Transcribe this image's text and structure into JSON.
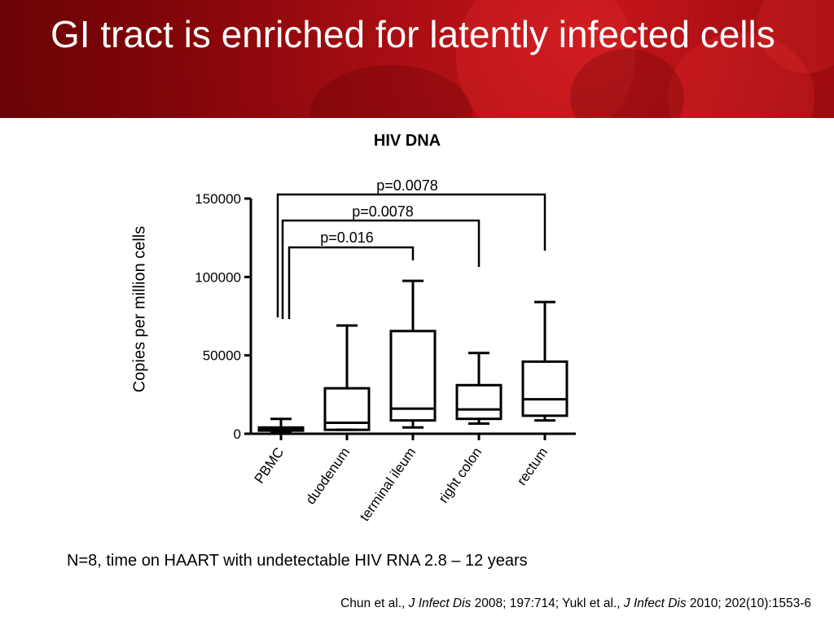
{
  "slide": {
    "title": "GI tract is enriched for latently infected cells",
    "footnote": "N=8, time on HAART with undetectable HIV RNA 2.8 – 12 years",
    "citation": {
      "part1": "Chun et al., ",
      "journal1": "J Infect Dis",
      "part2": " 2008; 197:714; Yukl et al., ",
      "journal2": "J Infect Dis",
      "part3": " 2010; 202(10):1553-6"
    }
  },
  "chart_data": {
    "type": "box",
    "title": "HIV DNA",
    "ylabel": "Copies per million cells",
    "ylim": [
      0,
      150000
    ],
    "yticks": [
      0,
      50000,
      100000,
      150000
    ],
    "ytick_labels": [
      "0",
      "50000",
      "100000",
      "150000"
    ],
    "categories": [
      "PBMC",
      "duodenum",
      "terminal ileum",
      "right colon",
      "rectum"
    ],
    "boxes": [
      {
        "category": "PBMC",
        "min": 800,
        "q1": 2000,
        "median": 2800,
        "q3": 4000,
        "max": 9500
      },
      {
        "category": "duodenum",
        "min": 2500,
        "q1": 2500,
        "median": 7000,
        "q3": 29000,
        "max": 69000
      },
      {
        "category": "terminal ileum",
        "min": 4000,
        "q1": 8500,
        "median": 16000,
        "q3": 65500,
        "max": 97500
      },
      {
        "category": "right colon",
        "min": 6500,
        "q1": 9500,
        "median": 15500,
        "q3": 31000,
        "max": 51500
      },
      {
        "category": "rectum",
        "min": 8500,
        "q1": 11500,
        "median": 22000,
        "q3": 46000,
        "max": 84000
      }
    ],
    "comparisons": [
      {
        "from": "PBMC",
        "to": "terminal ileum",
        "label": "p=0.016"
      },
      {
        "from": "PBMC",
        "to": "right colon",
        "label": "p=0.0078"
      },
      {
        "from": "PBMC",
        "to": "rectum",
        "label": "p=0.0078"
      }
    ],
    "grid": false,
    "color": "#000000"
  }
}
